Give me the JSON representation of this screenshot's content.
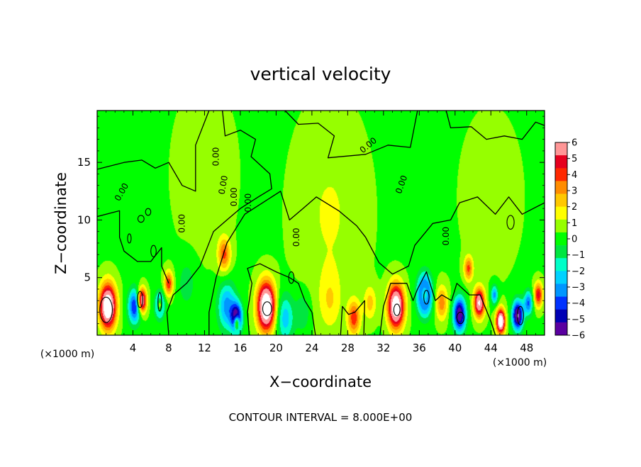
{
  "chart_data": {
    "type": "heatmap",
    "title": "vertical velocity",
    "xlabel": "X−coordinate",
    "ylabel": "Z−coordinate",
    "x_unit": "(×1000 m)",
    "z_unit": "(×1000 m)",
    "footer": "CONTOUR INTERVAL = 8.000E+00",
    "xlim": [
      0,
      50
    ],
    "ylim": [
      0,
      19.5
    ],
    "x_ticks": [
      "4",
      "8",
      "12",
      "16",
      "20",
      "24",
      "28",
      "32",
      "36",
      "40",
      "44",
      "48"
    ],
    "y_ticks": [
      "5",
      "10",
      "15"
    ],
    "colorbar": {
      "min": -6,
      "max": 6,
      "labels": [
        "6",
        "5",
        "4",
        "3",
        "2",
        "1",
        "0",
        "−1",
        "−2",
        "−3",
        "−4",
        "−5",
        "−6"
      ],
      "colors": [
        "#5a00a0",
        "#0000b4",
        "#0032ff",
        "#0096ff",
        "#00d2ff",
        "#00ffc8",
        "#00e640",
        "#00ff00",
        "#96ff00",
        "#ffff00",
        "#ffc800",
        "#ff8c00",
        "#ff2800",
        "#e6001e",
        "#ff9696"
      ]
    },
    "background_value": 0.3,
    "contour_value_label": "0.00",
    "cells": [
      {
        "x": 1.2,
        "z": 2.5,
        "w": 0.9,
        "amp": 8.5
      },
      {
        "x": 4.2,
        "z": 2.5,
        "w": 0.7,
        "amp": -5.0
      },
      {
        "x": 5.0,
        "z": 3.0,
        "w": 0.5,
        "amp": 7.0
      },
      {
        "x": 7.0,
        "z": 2.6,
        "w": 0.5,
        "amp": -5.5
      },
      {
        "x": 7.0,
        "z": 2.6,
        "w": 0.3,
        "amp": 6.0
      },
      {
        "x": 8.0,
        "z": 4.5,
        "w": 0.5,
        "amp": 4.0
      },
      {
        "x": 10.0,
        "z": 4.5,
        "w": 1.0,
        "amp": -1.2
      },
      {
        "x": 14.2,
        "z": 7.0,
        "w": 0.7,
        "amp": 3.5
      },
      {
        "x": 14.5,
        "z": 2.5,
        "w": 1.0,
        "amp": -3.5
      },
      {
        "x": 15.6,
        "z": 1.5,
        "w": 0.6,
        "amp": -6.5
      },
      {
        "x": 15.6,
        "z": 1.1,
        "w": 0.3,
        "amp": 6.0
      },
      {
        "x": 18.9,
        "z": 2.5,
        "w": 1.0,
        "amp": 8.5
      },
      {
        "x": 21.0,
        "z": 1.5,
        "w": 1.0,
        "amp": -2.8
      },
      {
        "x": 23.0,
        "z": 2.0,
        "w": 0.8,
        "amp": -1.5
      },
      {
        "x": 26.0,
        "z": 3.0,
        "w": 1.2,
        "amp": 1.5
      },
      {
        "x": 28.7,
        "z": 1.5,
        "w": 0.7,
        "amp": 3.8
      },
      {
        "x": 30.5,
        "z": 2.8,
        "w": 0.7,
        "amp": 2.0
      },
      {
        "x": 33.4,
        "z": 2.5,
        "w": 0.9,
        "amp": 8.0
      },
      {
        "x": 36.6,
        "z": 3.5,
        "w": 0.8,
        "amp": -6.5
      },
      {
        "x": 36.6,
        "z": 3.5,
        "w": 0.4,
        "amp": 4.5
      },
      {
        "x": 38.5,
        "z": 2.8,
        "w": 0.7,
        "amp": 3.0
      },
      {
        "x": 40.5,
        "z": 1.8,
        "w": 0.7,
        "amp": -6.5
      },
      {
        "x": 41.5,
        "z": 5.8,
        "w": 0.5,
        "amp": 3.5
      },
      {
        "x": 42.7,
        "z": 2.8,
        "w": 0.6,
        "amp": 6.5
      },
      {
        "x": 44.4,
        "z": 3.5,
        "w": 0.4,
        "amp": -3.5
      },
      {
        "x": 45.1,
        "z": 1.2,
        "w": 0.5,
        "amp": 8.0
      },
      {
        "x": 47.0,
        "z": 1.7,
        "w": 0.6,
        "amp": -7.0
      },
      {
        "x": 48.2,
        "z": 2.8,
        "w": 0.5,
        "amp": -4.0
      },
      {
        "x": 49.3,
        "z": 3.5,
        "w": 0.5,
        "amp": 4.5
      },
      {
        "x": 26.0,
        "z": 10.5,
        "w": 3.5,
        "amp": 1.0
      },
      {
        "x": 12.0,
        "z": 14.0,
        "w": 3.0,
        "amp": 0.6
      },
      {
        "x": 44.0,
        "z": 12.0,
        "w": 3.0,
        "amp": 0.5
      }
    ],
    "contour_lines": [
      [
        [
          0,
          14.4
        ],
        [
          3,
          15.0
        ],
        [
          5,
          15.2
        ],
        [
          6.5,
          14.5
        ],
        [
          8,
          15.0
        ],
        [
          9.5,
          13.0
        ],
        [
          11,
          12.5
        ],
        [
          11,
          16.5
        ],
        [
          12.5,
          19.5
        ]
      ],
      [
        [
          14,
          19.5
        ],
        [
          14.3,
          17.3
        ],
        [
          16,
          17.8
        ],
        [
          17.7,
          17.0
        ],
        [
          17.2,
          15.5
        ],
        [
          19.3,
          14.0
        ],
        [
          19.5,
          12.7
        ],
        [
          18,
          12.0
        ],
        [
          16,
          11.0
        ],
        [
          14.5,
          10.0
        ],
        [
          13,
          9.0
        ],
        [
          11.5,
          6.0
        ],
        [
          10,
          4.5
        ],
        [
          8.5,
          3.5
        ],
        [
          7.8,
          2.0
        ],
        [
          8.0,
          0
        ]
      ],
      [
        [
          0,
          10.3
        ],
        [
          2.5,
          10.8
        ],
        [
          2.5,
          8.5
        ],
        [
          3,
          7.3
        ],
        [
          4.5,
          6.4
        ],
        [
          6,
          6.4
        ],
        [
          7.2,
          7.6
        ],
        [
          7.2,
          6.0
        ],
        [
          8.0,
          4.5
        ]
      ],
      [
        [
          12.5,
          0
        ],
        [
          12.5,
          2.0
        ],
        [
          13.3,
          5.0
        ],
        [
          14.5,
          8.0
        ],
        [
          16.5,
          10.5
        ],
        [
          18.5,
          11.5
        ],
        [
          20.5,
          12.5
        ],
        [
          21.5,
          10.0
        ],
        [
          23,
          11.0
        ],
        [
          24.5,
          12.0
        ],
        [
          27,
          10.8
        ],
        [
          29,
          9.5
        ],
        [
          30,
          8.5
        ],
        [
          31.5,
          6.3
        ],
        [
          33,
          5.3
        ],
        [
          34.8,
          6.0
        ],
        [
          35.5,
          7.8
        ],
        [
          37.5,
          9.7
        ],
        [
          39.5,
          10.0
        ],
        [
          40.5,
          11.5
        ],
        [
          42.5,
          12.0
        ],
        [
          44.5,
          10.5
        ],
        [
          46,
          12.0
        ],
        [
          47.5,
          10.5
        ],
        [
          50,
          11.5
        ]
      ],
      [
        [
          21,
          19.5
        ],
        [
          22.5,
          18.3
        ],
        [
          24.7,
          18.4
        ],
        [
          26.5,
          17.3
        ],
        [
          25.8,
          15.4
        ],
        [
          30,
          15.7
        ],
        [
          32.5,
          16.5
        ],
        [
          35,
          16.3
        ],
        [
          35.8,
          19.5
        ]
      ],
      [
        [
          39,
          19.5
        ],
        [
          39.5,
          18.0
        ],
        [
          41.8,
          18.1
        ],
        [
          43.5,
          17.0
        ],
        [
          45.5,
          17.3
        ],
        [
          47.5,
          17.0
        ],
        [
          49,
          18.5
        ],
        [
          50,
          18.2
        ]
      ],
      [
        [
          17,
          0
        ],
        [
          16.8,
          2.0
        ],
        [
          17.3,
          4.5
        ],
        [
          16.8,
          5.8
        ],
        [
          18.2,
          6.2
        ],
        [
          20,
          5.5
        ],
        [
          21.5,
          5.0
        ],
        [
          22.5,
          4.5
        ],
        [
          23.2,
          3.0
        ],
        [
          24,
          2.0
        ],
        [
          24.4,
          0
        ]
      ],
      [
        [
          27.2,
          0
        ],
        [
          27.4,
          2.5
        ],
        [
          28.1,
          1.8
        ],
        [
          28.8,
          2.0
        ],
        [
          29.9,
          3.0
        ],
        [
          29.8,
          0
        ]
      ],
      [
        [
          31.6,
          0
        ],
        [
          32.0,
          2.5
        ],
        [
          32.8,
          4.5
        ],
        [
          34.6,
          4.5
        ],
        [
          35.3,
          3.0
        ],
        [
          35.8,
          4.0
        ],
        [
          36.8,
          5.5
        ],
        [
          37.8,
          3.0
        ],
        [
          38.5,
          3.5
        ],
        [
          39.6,
          3.0
        ],
        [
          40.2,
          4.5
        ],
        [
          41.6,
          3.5
        ],
        [
          42.8,
          3.5
        ],
        [
          44.0,
          1.2
        ],
        [
          44.5,
          0
        ]
      ]
    ],
    "contour_loops": [
      {
        "x": 1.0,
        "z": 2.2,
        "rx": 0.7,
        "rz": 1.1
      },
      {
        "x": 4.8,
        "z": 3.1,
        "rx": 0.3,
        "rz": 0.7
      },
      {
        "x": 7.0,
        "z": 2.9,
        "rx": 0.2,
        "rz": 0.8
      },
      {
        "x": 19.0,
        "z": 2.3,
        "rx": 0.5,
        "rz": 0.6
      },
      {
        "x": 33.5,
        "z": 2.2,
        "rx": 0.35,
        "rz": 0.5
      },
      {
        "x": 36.8,
        "z": 3.3,
        "rx": 0.3,
        "rz": 0.6
      },
      {
        "x": 40.6,
        "z": 1.5,
        "rx": 0.4,
        "rz": 0.5
      },
      {
        "x": 47.3,
        "z": 1.7,
        "rx": 0.35,
        "rz": 0.8
      },
      {
        "x": 4.9,
        "z": 10.1,
        "rx": 0.35,
        "rz": 0.3
      },
      {
        "x": 5.7,
        "z": 10.7,
        "rx": 0.3,
        "rz": 0.3
      },
      {
        "x": 3.6,
        "z": 8.4,
        "rx": 0.2,
        "rz": 0.4
      },
      {
        "x": 6.3,
        "z": 7.3,
        "rx": 0.3,
        "rz": 0.5
      },
      {
        "x": 21.7,
        "z": 5.0,
        "rx": 0.3,
        "rz": 0.5
      },
      {
        "x": 46.2,
        "z": 9.8,
        "rx": 0.4,
        "rz": 0.6
      }
    ],
    "contour_label_positions": [
      {
        "x": 3.0,
        "z": 12.3,
        "angle": -60
      },
      {
        "x": 9.8,
        "z": 9.7,
        "angle": -90
      },
      {
        "x": 13.6,
        "z": 15.5,
        "angle": -90
      },
      {
        "x": 14.4,
        "z": 13.0,
        "angle": -80
      },
      {
        "x": 15.6,
        "z": 12.0,
        "angle": -90
      },
      {
        "x": 17.2,
        "z": 11.5,
        "angle": -90
      },
      {
        "x": 22.6,
        "z": 8.5,
        "angle": -90
      },
      {
        "x": 30.5,
        "z": 16.3,
        "angle": -40
      },
      {
        "x": 34.3,
        "z": 13.0,
        "angle": -70
      },
      {
        "x": 39.3,
        "z": 8.6,
        "angle": -90
      }
    ]
  }
}
